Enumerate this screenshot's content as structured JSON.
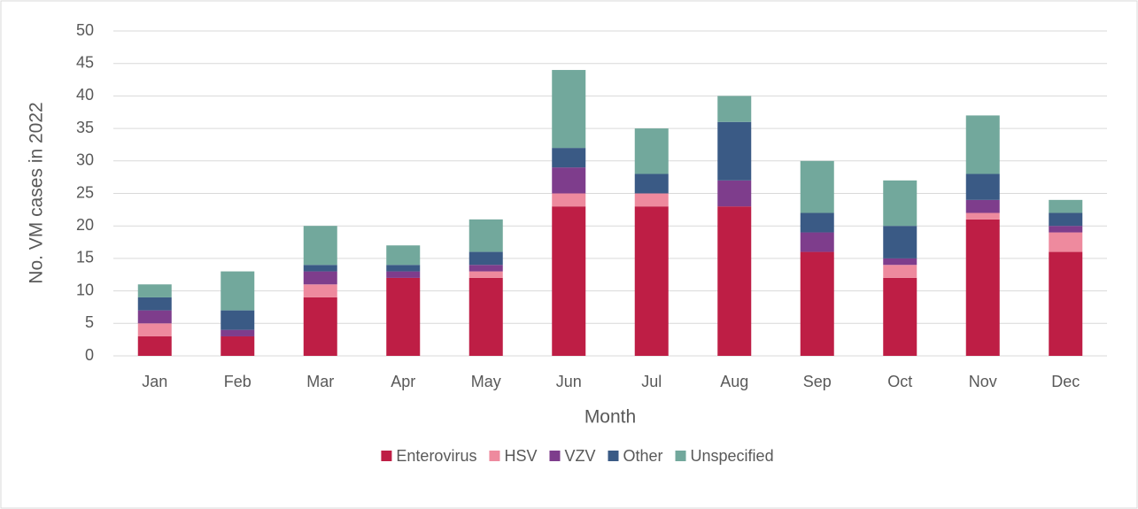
{
  "chart_data": {
    "type": "stacked_bar",
    "x_label": "Month",
    "y_label": "No. VM cases in 2022",
    "categories": [
      "Jan",
      "Feb",
      "Mar",
      "Apr",
      "May",
      "Jun",
      "Jul",
      "Aug",
      "Sep",
      "Oct",
      "Nov",
      "Dec"
    ],
    "series": [
      {
        "name": "Enterovirus",
        "color": "#be1e45",
        "values": [
          3,
          3,
          9,
          12,
          12,
          23,
          23,
          23,
          16,
          12,
          21,
          16
        ]
      },
      {
        "name": "HSV",
        "color": "#ee8a9e",
        "values": [
          2,
          0,
          2,
          0,
          1,
          2,
          2,
          0,
          0,
          2,
          1,
          3
        ]
      },
      {
        "name": "VZV",
        "color": "#7e3d8c",
        "values": [
          2,
          1,
          2,
          1,
          1,
          4,
          0,
          4,
          3,
          1,
          2,
          1
        ]
      },
      {
        "name": "Other",
        "color": "#3a5a85",
        "values": [
          2,
          3,
          1,
          1,
          2,
          3,
          3,
          9,
          3,
          5,
          4,
          2
        ]
      },
      {
        "name": "Unspecified",
        "color": "#72a89c",
        "values": [
          2,
          6,
          6,
          3,
          5,
          12,
          7,
          4,
          8,
          7,
          9,
          2
        ]
      }
    ],
    "ylim": [
      0,
      50
    ],
    "yticks": [
      0,
      5,
      10,
      15,
      20,
      25,
      30,
      35,
      40,
      45,
      50
    ],
    "grid": true,
    "legend": "bottom"
  }
}
